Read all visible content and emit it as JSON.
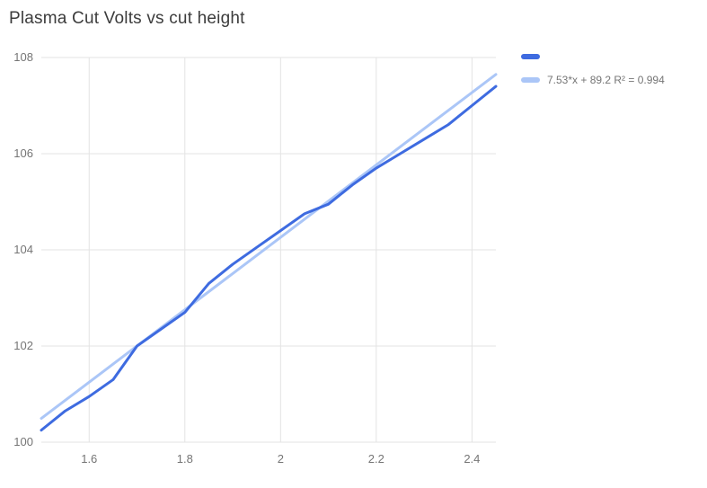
{
  "title": "Plasma Cut Volts vs cut height",
  "colors": {
    "series": "#3e6be0",
    "trend": "#abc6f7",
    "grid": "#e3e3e3",
    "axis_text": "#757575",
    "title_text": "#3c3c3c"
  },
  "legend": {
    "series_label": "",
    "trend_label": "7.53*x + 89.2 R² = 0.994"
  },
  "chart_data": {
    "type": "line",
    "title": "Plasma Cut Volts vs cut height",
    "xlabel": "",
    "ylabel": "",
    "xlim": [
      1.5,
      2.45
    ],
    "ylim": [
      100,
      108
    ],
    "x_ticks": [
      1.6,
      1.8,
      2,
      2.2,
      2.4
    ],
    "x_tick_labels": [
      "1.6",
      "1.8",
      "2",
      "2.2",
      "2.4"
    ],
    "y_ticks": [
      100,
      102,
      104,
      106,
      108
    ],
    "y_tick_labels": [
      "100",
      "102",
      "104",
      "106",
      "108"
    ],
    "grid": true,
    "legend_position": "right",
    "x": [
      1.5,
      1.55,
      1.6,
      1.65,
      1.7,
      1.75,
      1.8,
      1.85,
      1.9,
      1.95,
      2.0,
      2.05,
      2.1,
      2.15,
      2.2,
      2.25,
      2.3,
      2.35,
      2.4,
      2.45
    ],
    "series": [
      {
        "name": "",
        "values": [
          100.25,
          100.65,
          100.95,
          101.3,
          102.0,
          102.35,
          102.7,
          103.3,
          103.7,
          104.05,
          104.4,
          104.75,
          104.95,
          105.35,
          105.7,
          106.0,
          106.3,
          106.6,
          107.0,
          107.4
        ]
      }
    ],
    "trendline": {
      "slope": 7.53,
      "intercept": 89.2,
      "r2": 0.994,
      "equation_label": "7.53*x + 89.2 R² = 0.994"
    }
  }
}
